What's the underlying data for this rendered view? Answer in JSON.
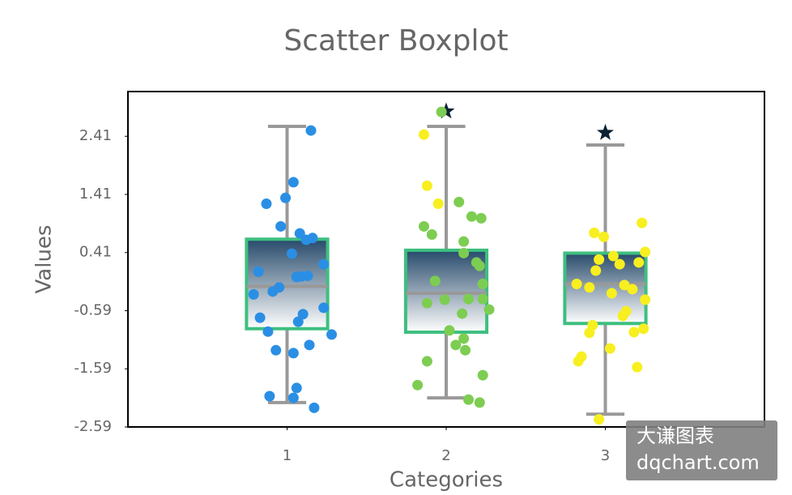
{
  "chart_data": {
    "type": "boxplot",
    "title": "Scatter Boxplot",
    "x_label": "Categories",
    "y_label": "Values",
    "xlim": [
      0,
      4
    ],
    "xticks": [
      1,
      2,
      3
    ],
    "ylim": [
      -2.59,
      3.18
    ],
    "yticks": [
      -2.59,
      -1.59,
      -0.59,
      0.41,
      1.41,
      2.41
    ],
    "box_edge_color": "#3dbf7f",
    "whisker_color": "#999999",
    "gradient": [
      "#274a6b",
      "#ffffff"
    ],
    "outlier_color": "#0d2233",
    "boxes": [
      {
        "whisker_low": -2.17,
        "q1": -0.9,
        "median": -0.17,
        "q3": 0.64,
        "whisker_high": 2.58
      },
      {
        "whisker_low": -2.09,
        "q1": -0.96,
        "median": -0.29,
        "q3": 0.45,
        "whisker_high": 2.58,
        "outliers": [
          2.84
        ]
      },
      {
        "whisker_low": -2.37,
        "q1": -0.81,
        "median": -0.13,
        "q3": 0.4,
        "whisker_high": 2.26,
        "outliers": [
          2.47
        ]
      }
    ],
    "series": [
      {
        "color": "#2a8fe4",
        "x": [
          1.15,
          1.04,
          0.87,
          0.99,
          0.96,
          1.08,
          1.12,
          1.16,
          1.03,
          1.23,
          0.82,
          1.06,
          1.09,
          1.13,
          0.95,
          0.91,
          0.79,
          1.23,
          1.1,
          0.83,
          1.07,
          1.28,
          0.88,
          1.14,
          0.93,
          1.04,
          1.06,
          0.89,
          1.04,
          1.17
        ],
        "values": [
          2.51,
          1.62,
          1.25,
          1.35,
          0.86,
          0.74,
          0.63,
          0.66,
          0.39,
          0.21,
          0.08,
          -0.01,
          0.0,
          0.01,
          -0.19,
          -0.26,
          -0.31,
          -0.54,
          -0.65,
          -0.71,
          -0.78,
          -1.0,
          -0.95,
          -1.18,
          -1.27,
          -1.32,
          -1.92,
          -2.06,
          -2.09,
          -2.26
        ]
      },
      {
        "color": "#7dcd52",
        "x": [
          1.97,
          2.08,
          1.86,
          2.16,
          2.22,
          1.91,
          2.11,
          2.11,
          2.19,
          2.21,
          1.93,
          2.23,
          1.88,
          1.99,
          2.14,
          2.23,
          2.27,
          2.1,
          2.02,
          2.11,
          2.06,
          2.12,
          1.88,
          2.23,
          1.82,
          2.14,
          2.21
        ],
        "values": [
          2.83,
          1.28,
          0.86,
          1.03,
          1.0,
          0.72,
          0.6,
          0.4,
          0.24,
          0.18,
          -0.08,
          -0.13,
          -0.46,
          -0.4,
          -0.39,
          -0.39,
          -0.57,
          -0.64,
          -0.93,
          -1.07,
          -1.18,
          -1.27,
          -1.46,
          -1.7,
          -1.87,
          -2.12,
          -2.17
        ]
      },
      {
        "color": "#f7ef1f",
        "x": [
          1.86,
          1.88,
          1.95,
          3.23,
          2.93,
          2.99,
          3.25,
          2.96,
          3.05,
          3.21,
          3.09,
          2.94,
          2.82,
          2.9,
          3.12,
          3.17,
          3.04,
          3.25,
          3.13,
          3.11,
          2.92,
          3.24,
          3.18,
          2.9,
          3.03,
          2.85,
          2.83,
          3.2,
          2.96
        ],
        "values": [
          2.44,
          1.56,
          1.25,
          0.92,
          0.75,
          0.68,
          0.42,
          0.29,
          0.35,
          0.24,
          0.21,
          0.1,
          -0.13,
          -0.19,
          -0.15,
          -0.22,
          -0.29,
          -0.4,
          -0.6,
          -0.68,
          -0.84,
          -0.9,
          -0.96,
          -0.97,
          -1.24,
          -1.38,
          -1.46,
          -1.56,
          -2.46
        ]
      }
    ],
    "watermark": [
      "大谦图表",
      "dqchart.com"
    ]
  }
}
